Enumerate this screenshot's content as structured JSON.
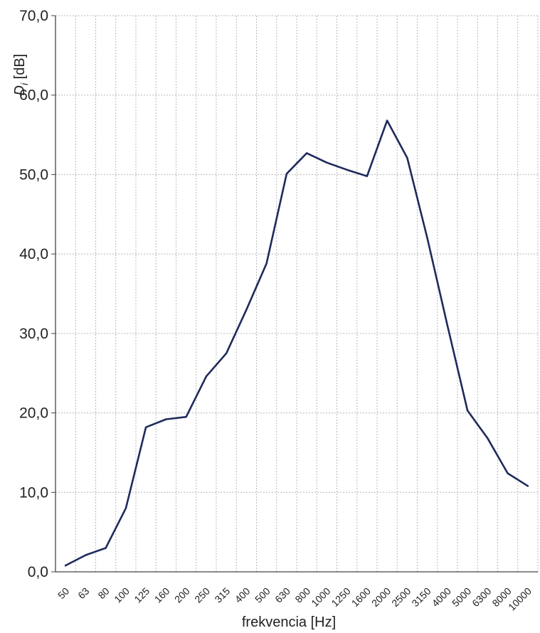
{
  "chart_data": {
    "type": "line",
    "title": "",
    "xlabel": "frekvencia [Hz]",
    "ylabel_main": "D",
    "ylabel_sub": "i",
    "ylabel_unit": " [dB]",
    "ylim": [
      0,
      70
    ],
    "yticks": [
      0,
      10,
      20,
      30,
      40,
      50,
      60,
      70
    ],
    "ytick_labels": [
      "0,0",
      "10,0",
      "20,0",
      "30,0",
      "40,0",
      "50,0",
      "60,0",
      "70,0"
    ],
    "grid": true,
    "categories": [
      "50",
      "63",
      "80",
      "100",
      "125",
      "160",
      "200",
      "250",
      "315",
      "400",
      "500",
      "630",
      "800",
      "1000",
      "1250",
      "1600",
      "2000",
      "2500",
      "3150",
      "4000",
      "5000",
      "6300",
      "8000",
      "10000"
    ],
    "series": [
      {
        "name": "",
        "color": "#1f2a5c",
        "values": [
          0.8,
          2.1,
          3.0,
          8.0,
          18.2,
          19.2,
          19.5,
          24.6,
          27.5,
          33.0,
          38.8,
          50.1,
          52.7,
          51.5,
          50.6,
          49.8,
          56.8,
          52.1,
          42.0,
          31.0,
          20.3,
          16.8,
          12.4,
          10.8
        ]
      }
    ]
  }
}
